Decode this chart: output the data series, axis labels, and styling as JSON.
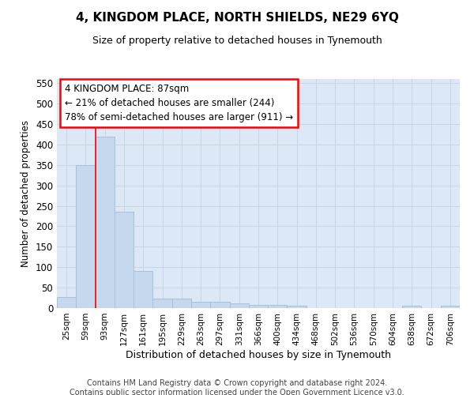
{
  "title": "4, KINGDOM PLACE, NORTH SHIELDS, NE29 6YQ",
  "subtitle": "Size of property relative to detached houses in Tynemouth",
  "xlabel": "Distribution of detached houses by size in Tynemouth",
  "ylabel": "Number of detached properties",
  "categories": [
    "25sqm",
    "59sqm",
    "93sqm",
    "127sqm",
    "161sqm",
    "195sqm",
    "229sqm",
    "263sqm",
    "297sqm",
    "331sqm",
    "366sqm",
    "400sqm",
    "434sqm",
    "468sqm",
    "502sqm",
    "536sqm",
    "570sqm",
    "604sqm",
    "638sqm",
    "672sqm",
    "706sqm"
  ],
  "values": [
    28,
    350,
    420,
    235,
    90,
    24,
    24,
    15,
    15,
    11,
    8,
    7,
    5,
    0,
    0,
    0,
    0,
    0,
    5,
    0,
    5
  ],
  "bar_color": "#c5d8ee",
  "bar_edge_color": "#a8c0dc",
  "grid_color": "#c8d4e8",
  "background_color": "#dce8f5",
  "annotation_line1": "4 KINGDOM PLACE: 87sqm",
  "annotation_line2": "← 21% of detached houses are smaller (244)",
  "annotation_line3": "78% of semi-detached houses are larger (911) →",
  "annotation_box_color": "white",
  "annotation_box_edge": "red",
  "red_line_x": 1.5,
  "ylim": [
    0,
    560
  ],
  "yticks": [
    0,
    50,
    100,
    150,
    200,
    250,
    300,
    350,
    400,
    450,
    500,
    550
  ],
  "footer_line1": "Contains HM Land Registry data © Crown copyright and database right 2024.",
  "footer_line2": "Contains public sector information licensed under the Open Government Licence v3.0."
}
